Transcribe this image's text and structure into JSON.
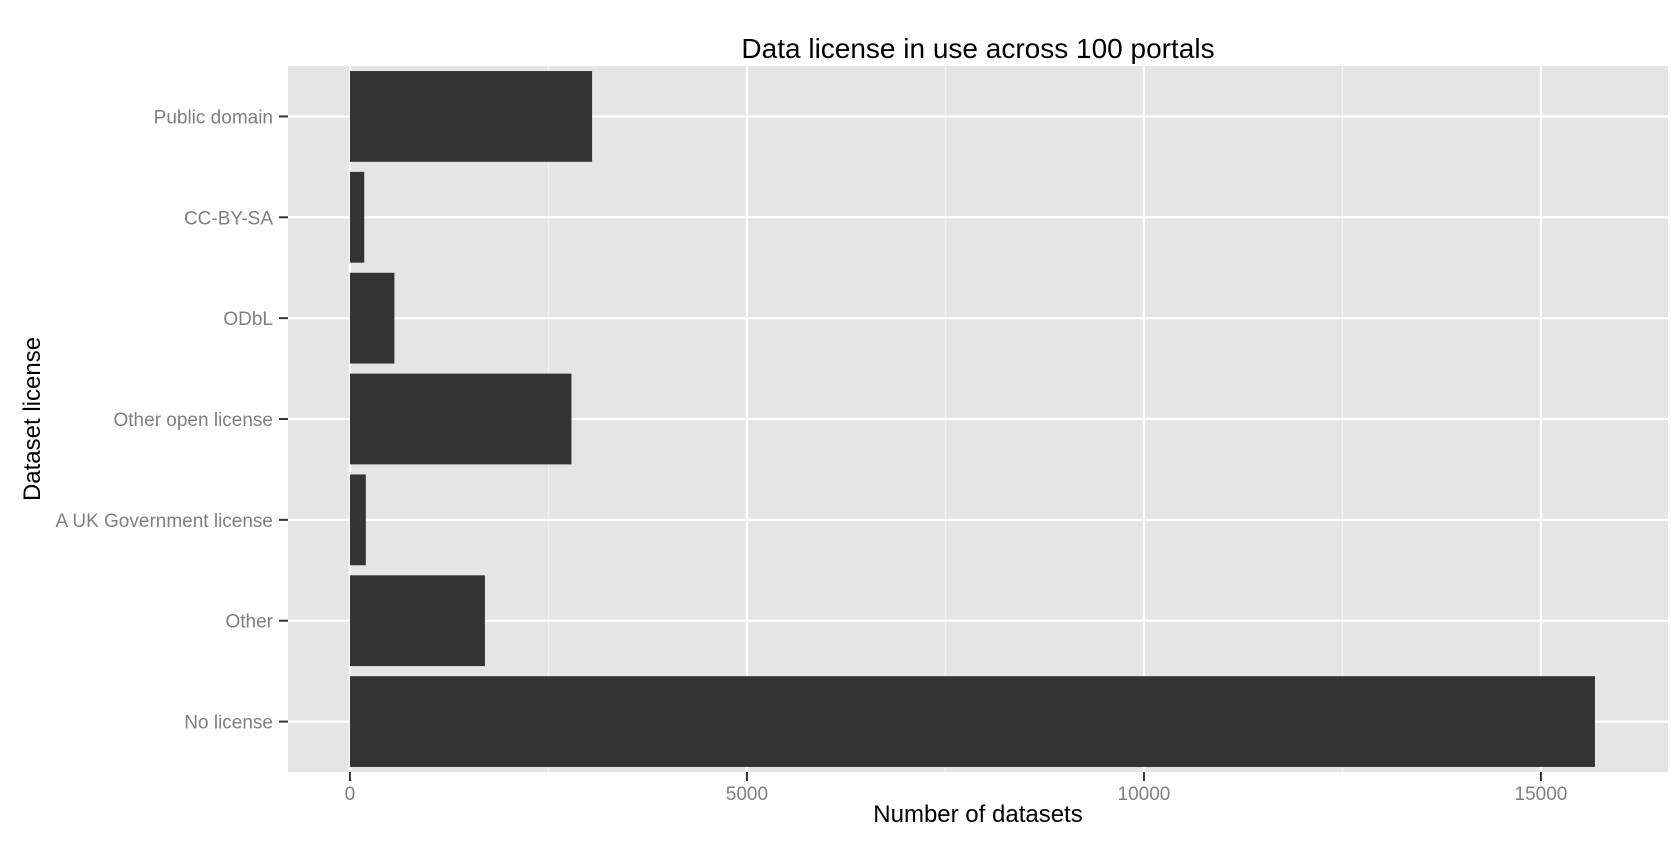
{
  "chart_data": {
    "type": "bar",
    "orientation": "horizontal",
    "title": "Data license in use across 100 portals",
    "xlabel": "Number of datasets",
    "ylabel": "Dataset license",
    "categories": [
      "No license",
      "Other",
      "A UK Government license",
      "Other open license",
      "ODbL",
      "CC-BY-SA",
      "Public domain"
    ],
    "values": [
      15680,
      1700,
      200,
      2790,
      560,
      180,
      3050
    ],
    "xlim": [
      -780,
      16600
    ],
    "xticks": [
      0,
      5000,
      10000,
      15000
    ],
    "xtick_labels": [
      "0",
      "5000",
      "10000",
      "15000"
    ],
    "grid": true,
    "colors": {
      "bar": "#333333",
      "panel": "#e5e5e5",
      "grid_major": "#ffffff",
      "grid_minor": "#f2f2f2",
      "tick_label": "#7f7f7f"
    }
  }
}
